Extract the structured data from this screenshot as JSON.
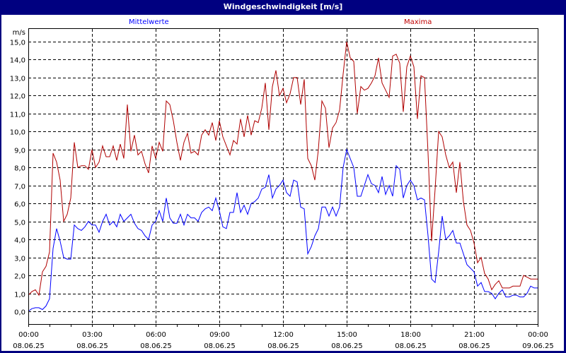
{
  "window": {
    "title": "Windgeschwindigkeit [m/s]"
  },
  "legend": [
    {
      "label": "Mittelwerte",
      "color": "#0000ff"
    },
    {
      "label": "Maxima",
      "color": "#b00000"
    }
  ],
  "chart_data": {
    "type": "line",
    "title": "Windgeschwindigkeit [m/s]",
    "xlabel": "",
    "ylabel": "m/s",
    "ylim": [
      -0.7,
      15.7
    ],
    "grid": true,
    "legend_position": "top",
    "y_ticks": [
      "0,0",
      "1,0",
      "2,0",
      "3,0",
      "4,0",
      "5,0",
      "6,0",
      "7,0",
      "8,0",
      "9,0",
      "10,0",
      "11,0",
      "12,0",
      "13,0",
      "14,0",
      "15,0"
    ],
    "x_ticks": [
      {
        "time": "00:00",
        "date": "08.06.25"
      },
      {
        "time": "03:00",
        "date": "08.06.25"
      },
      {
        "time": "06:00",
        "date": "08.06.25"
      },
      {
        "time": "09:00",
        "date": "08.06.25"
      },
      {
        "time": "12:00",
        "date": "08.06.25"
      },
      {
        "time": "15:00",
        "date": "08.06.25"
      },
      {
        "time": "18:00",
        "date": "08.06.25"
      },
      {
        "time": "21:00",
        "date": "08.06.25"
      },
      {
        "time": "00:00",
        "date": "09.06.25"
      }
    ],
    "x_interval_minutes": 10,
    "x_start": "08.06.25 00:00",
    "series": [
      {
        "name": "Mittelwerte",
        "color": "#0000ff",
        "values": [
          0.0,
          0.15,
          0.2,
          0.2,
          0.1,
          0.3,
          0.7,
          3.5,
          4.6,
          3.9,
          3.0,
          2.9,
          2.9,
          4.8,
          4.6,
          4.5,
          4.7,
          5.0,
          4.8,
          4.8,
          4.4,
          5.0,
          5.4,
          4.8,
          5.0,
          4.7,
          5.4,
          5.0,
          5.2,
          5.4,
          4.9,
          4.6,
          4.5,
          4.2,
          4.0,
          4.8,
          5.0,
          5.6,
          5.0,
          6.3,
          5.2,
          4.9,
          4.9,
          5.4,
          4.8,
          5.4,
          5.2,
          5.2,
          5.0,
          5.5,
          5.7,
          5.8,
          5.6,
          6.3,
          5.6,
          4.7,
          4.6,
          5.5,
          5.5,
          6.6,
          5.5,
          5.9,
          5.4,
          6.0,
          6.1,
          6.3,
          6.8,
          6.9,
          7.6,
          6.3,
          6.8,
          7.0,
          7.3,
          6.6,
          6.4,
          7.3,
          7.2,
          5.8,
          5.7,
          3.2,
          3.6,
          4.2,
          4.6,
          5.8,
          5.8,
          5.3,
          5.8,
          5.3,
          5.8,
          8.0,
          9.0,
          8.5,
          8.0,
          6.4,
          6.4,
          7.0,
          7.6,
          7.1,
          7.0,
          6.6,
          7.5,
          6.5,
          7.0,
          6.4,
          8.1,
          7.9,
          6.3,
          7.0,
          7.3,
          7.0,
          6.2,
          6.3,
          6.2,
          4.2,
          1.8,
          1.6,
          3.3,
          5.3,
          4.0,
          4.2,
          4.5,
          3.8,
          3.8,
          3.2,
          2.6,
          2.4,
          2.2,
          1.4,
          1.6,
          1.1,
          1.1,
          1.0,
          0.7,
          1.0,
          1.2,
          0.8,
          0.8,
          0.9,
          0.9,
          0.8,
          0.8,
          1.0,
          1.4,
          1.3,
          1.3
        ]
      },
      {
        "name": "Maxima",
        "color": "#b00000",
        "values": [
          0.9,
          1.1,
          1.2,
          0.9,
          2.2,
          2.5,
          3.3,
          8.8,
          8.3,
          7.3,
          5.0,
          5.4,
          6.3,
          9.4,
          8.0,
          8.1,
          8.1,
          7.9,
          9.0,
          8.0,
          8.3,
          9.2,
          8.6,
          8.6,
          9.2,
          8.4,
          9.3,
          8.5,
          11.5,
          8.9,
          9.8,
          8.7,
          8.9,
          8.2,
          7.7,
          9.2,
          8.5,
          9.4,
          8.9,
          11.7,
          11.5,
          10.6,
          9.4,
          8.4,
          9.4,
          9.9,
          8.8,
          8.9,
          8.7,
          9.8,
          10.1,
          9.8,
          10.5,
          9.5,
          10.6,
          9.7,
          9.2,
          8.7,
          9.5,
          9.3,
          10.7,
          9.7,
          10.9,
          9.8,
          10.6,
          10.5,
          11.3,
          12.7,
          10.1,
          12.5,
          13.4,
          12.0,
          12.4,
          11.6,
          12.1,
          13.0,
          13.0,
          11.5,
          12.9,
          8.5,
          8.1,
          7.3,
          9.0,
          11.7,
          11.3,
          9.1,
          10.2,
          10.5,
          11.2,
          13.2,
          15.0,
          14.1,
          13.9,
          11.0,
          12.5,
          12.3,
          12.4,
          12.7,
          13.1,
          14.1,
          12.7,
          12.3,
          11.9,
          14.2,
          14.3,
          13.8,
          11.1,
          13.6,
          14.2,
          13.6,
          10.7,
          13.1,
          13.0,
          8.8,
          3.9,
          6.8,
          10.0,
          9.7,
          8.7,
          8.0,
          8.3,
          6.6,
          8.3,
          6.1,
          4.8,
          4.5,
          3.8,
          2.7,
          3.0,
          2.1,
          1.8,
          1.2,
          1.5,
          1.7,
          1.3,
          1.3,
          1.3,
          1.4,
          1.4,
          1.4,
          2.0,
          1.9,
          1.8,
          1.8,
          1.8
        ]
      }
    ]
  }
}
